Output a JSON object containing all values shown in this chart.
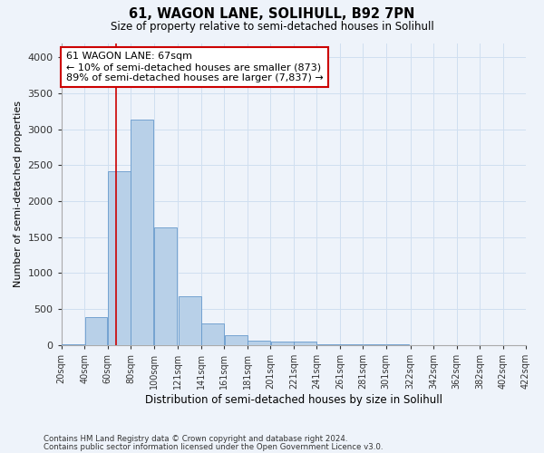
{
  "title": "61, WAGON LANE, SOLIHULL, B92 7PN",
  "subtitle": "Size of property relative to semi-detached houses in Solihull",
  "xlabel": "Distribution of semi-detached houses by size in Solihull",
  "ylabel": "Number of semi-detached properties",
  "footnote1": "Contains HM Land Registry data © Crown copyright and database right 2024.",
  "footnote2": "Contains public sector information licensed under the Open Government Licence v3.0.",
  "annotation_title": "61 WAGON LANE: 67sqm",
  "annotation_line1": "← 10% of semi-detached houses are smaller (873)",
  "annotation_line2": "89% of semi-detached houses are larger (7,837) →",
  "property_size": 67,
  "bar_left_edges": [
    20,
    40,
    60,
    80,
    100,
    121,
    141,
    161,
    181,
    201,
    221,
    241,
    261,
    281,
    301,
    322,
    342,
    362,
    382,
    402
  ],
  "bar_widths": [
    20,
    20,
    20,
    20,
    20,
    20,
    20,
    20,
    20,
    20,
    20,
    20,
    20,
    20,
    20,
    20,
    20,
    20,
    20,
    20
  ],
  "bar_heights": [
    10,
    390,
    2420,
    3140,
    1630,
    680,
    300,
    130,
    60,
    40,
    50,
    10,
    10,
    5,
    5,
    0,
    0,
    0,
    0,
    0
  ],
  "bar_color": "#b8d0e8",
  "bar_edge_color": "#6699cc",
  "vline_x": 67,
  "vline_color": "#cc0000",
  "annotation_box_color": "#cc0000",
  "grid_color": "#d0dff0",
  "background_color": "#eef3fa",
  "ylim": [
    0,
    4200
  ],
  "yticks": [
    0,
    500,
    1000,
    1500,
    2000,
    2500,
    3000,
    3500,
    4000
  ],
  "xtick_labels": [
    "20sqm",
    "40sqm",
    "60sqm",
    "80sqm",
    "100sqm",
    "121sqm",
    "141sqm",
    "161sqm",
    "181sqm",
    "201sqm",
    "221sqm",
    "241sqm",
    "261sqm",
    "281sqm",
    "301sqm",
    "322sqm",
    "342sqm",
    "362sqm",
    "382sqm",
    "402sqm",
    "422sqm"
  ],
  "xlim_left": 20,
  "xlim_right": 422
}
